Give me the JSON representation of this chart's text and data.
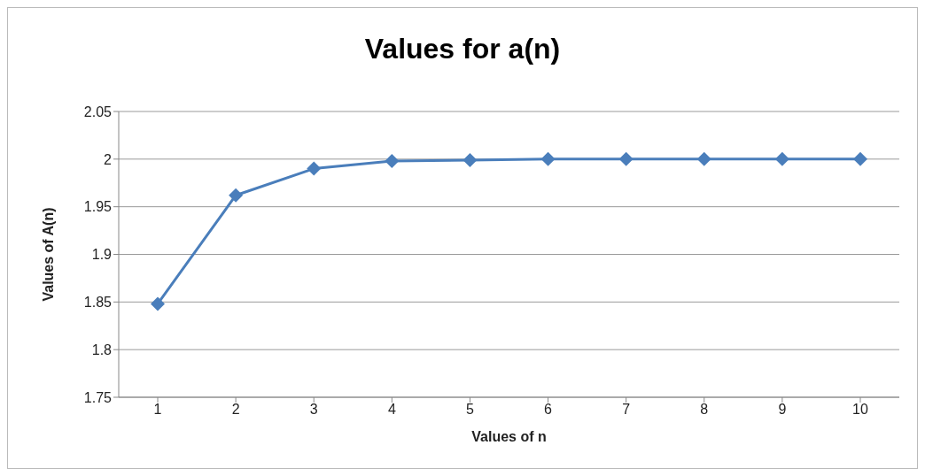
{
  "chart_data": {
    "type": "line",
    "title": "Values for a(n)",
    "xlabel": "Values of n",
    "ylabel": "Values of A(n)",
    "categories": [
      "1",
      "2",
      "3",
      "4",
      "5",
      "6",
      "7",
      "8",
      "9",
      "10"
    ],
    "series": [
      {
        "color": "#4a7ebb",
        "values": [
          1.848,
          1.962,
          1.99,
          1.998,
          1.999,
          2,
          2,
          2,
          2,
          2
        ]
      }
    ],
    "ylim": [
      1.75,
      2.05
    ],
    "yticks": [
      1.75,
      1.8,
      1.85,
      1.9,
      1.95,
      2,
      2.05
    ],
    "grid": "y",
    "marker": "diamond",
    "line_style": "solid"
  }
}
